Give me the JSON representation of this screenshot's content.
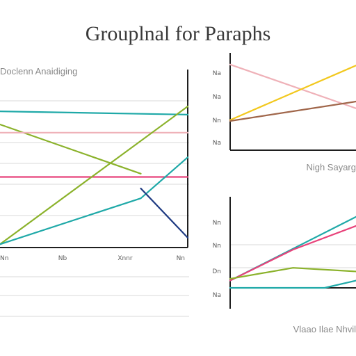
{
  "page_title": "Grouplnal for Paraphs",
  "colors": {
    "teal": "#1fa9a8",
    "green": "#8bb22b",
    "pink": "#e8427a",
    "light_pink": "#efb1b8",
    "navy": "#1f3b82",
    "yellow": "#f2c81e",
    "brown": "#a0664a",
    "axis": "#1f1f1f",
    "grid": "#e6e6e6"
  },
  "chart_data": [
    {
      "type": "line",
      "title": "Doclenn Anaidiging",
      "xlabel": "",
      "ylabel": "",
      "x_tick_labels": [
        "Nn",
        "Nb",
        "Xnnr",
        "Nn"
      ],
      "y_tick_labels": [],
      "xlim": [
        0,
        4
      ],
      "ylim": [
        0,
        10
      ],
      "grid": true,
      "series": [
        {
          "color": "#1fa9a8",
          "x": [
            0,
            4
          ],
          "y": [
            8.3,
            8.1
          ]
        },
        {
          "color": "#8bb22b",
          "x": [
            0,
            3.0
          ],
          "y": [
            7.5,
            4.5
          ]
        },
        {
          "color": "#efb1b8",
          "x": [
            0,
            4
          ],
          "y": [
            7.0,
            7.0
          ]
        },
        {
          "color": "#e8427a",
          "x": [
            0,
            4
          ],
          "y": [
            4.3,
            4.3
          ]
        },
        {
          "color": "#8bb22b",
          "x": [
            0,
            4
          ],
          "y": [
            0.2,
            8.6
          ]
        },
        {
          "color": "#1fa9a8",
          "x": [
            0,
            3.0,
            4
          ],
          "y": [
            0.2,
            3.0,
            5.5
          ]
        },
        {
          "color": "#1f3b82",
          "x": [
            3.0,
            4
          ],
          "y": [
            3.6,
            0.6
          ]
        }
      ]
    },
    {
      "type": "line",
      "title": "",
      "xlabel": "Nigh Sayarg",
      "ylabel": "",
      "x_tick_labels": [],
      "y_tick_labels": [
        "Na",
        "Na",
        "Nn",
        "Na"
      ],
      "xlim": [
        0,
        1
      ],
      "ylim": [
        0,
        10
      ],
      "grid": false,
      "series": [
        {
          "color": "#efb1b8",
          "x": [
            0,
            1
          ],
          "y": [
            8.8,
            4.3
          ]
        },
        {
          "color": "#f2c81e",
          "x": [
            0,
            1
          ],
          "y": [
            3.1,
            8.7
          ]
        },
        {
          "color": "#a0664a",
          "x": [
            0,
            1
          ],
          "y": [
            3.0,
            5.0
          ]
        }
      ]
    },
    {
      "type": "line",
      "title": "",
      "xlabel": "Vlaao Ilae Nhvil",
      "ylabel": "",
      "x_tick_labels": [],
      "y_tick_labels": [
        "Nn",
        "Nn",
        "Dn",
        "Na"
      ],
      "xlim": [
        0,
        1
      ],
      "ylim": [
        0,
        10
      ],
      "grid": true,
      "series": [
        {
          "color": "#1fa9a8",
          "x": [
            0,
            1
          ],
          "y": [
            0.8,
            7.8
          ]
        },
        {
          "color": "#e8427a",
          "x": [
            0,
            0.5,
            1
          ],
          "y": [
            0.8,
            4.2,
            6.8
          ]
        },
        {
          "color": "#8bb22b",
          "x": [
            0,
            0.5,
            1
          ],
          "y": [
            1.0,
            2.2,
            1.8
          ]
        },
        {
          "color": "#1fa9a8",
          "x": [
            0,
            0.75,
            1
          ],
          "y": [
            0.0,
            0.0,
            0.8
          ]
        }
      ]
    }
  ]
}
